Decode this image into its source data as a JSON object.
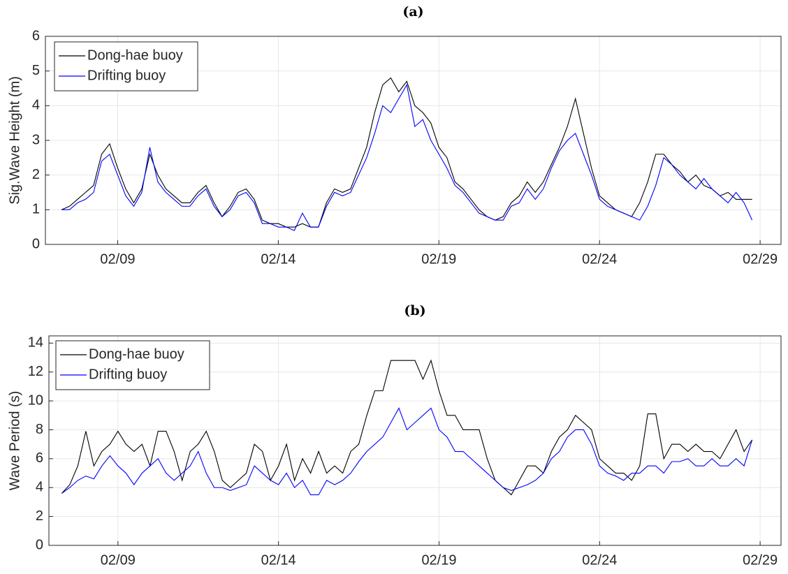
{
  "chart_data": [
    {
      "type": "line",
      "title": "(a)",
      "ylabel": "Sig.Wave Height (m)",
      "x": [
        7.25,
        7.5,
        7.75,
        8,
        8.25,
        8.5,
        8.75,
        9,
        9.25,
        9.5,
        9.75,
        10,
        10.25,
        10.5,
        10.75,
        11,
        11.25,
        11.5,
        11.75,
        12,
        12.25,
        12.5,
        12.75,
        13,
        13.25,
        13.5,
        13.75,
        14,
        14.25,
        14.5,
        14.75,
        15,
        15.25,
        15.5,
        15.75,
        16,
        16.25,
        16.5,
        16.75,
        17,
        17.25,
        17.5,
        17.75,
        18,
        18.25,
        18.5,
        18.75,
        19,
        19.25,
        19.5,
        19.75,
        20,
        20.25,
        20.5,
        20.75,
        21,
        21.25,
        21.5,
        21.75,
        22,
        22.25,
        22.5,
        22.75,
        23,
        23.25,
        23.5,
        23.75,
        24,
        24.25,
        24.5,
        24.75,
        25,
        25.25,
        25.5,
        25.75,
        26,
        26.25,
        26.5,
        26.75,
        27,
        27.25,
        27.5,
        27.75,
        28,
        28.25,
        28.5,
        28.75
      ],
      "series": [
        {
          "name": "Dong-hae buoy",
          "color": "#000000",
          "values": [
            1.0,
            1.1,
            1.3,
            1.5,
            1.7,
            2.6,
            2.9,
            2.2,
            1.6,
            1.2,
            1.6,
            2.6,
            2.0,
            1.6,
            1.4,
            1.2,
            1.2,
            1.5,
            1.7,
            1.2,
            0.8,
            1.1,
            1.5,
            1.6,
            1.3,
            0.7,
            0.6,
            0.6,
            0.5,
            0.5,
            0.6,
            0.5,
            0.5,
            1.2,
            1.6,
            1.5,
            1.6,
            2.2,
            2.8,
            3.8,
            4.6,
            4.8,
            4.4,
            4.7,
            4.0,
            3.8,
            3.5,
            2.8,
            2.5,
            1.8,
            1.6,
            1.3,
            1.0,
            0.8,
            0.7,
            0.8,
            1.2,
            1.4,
            1.8,
            1.5,
            1.8,
            2.3,
            2.8,
            3.4,
            4.2,
            3.2,
            2.2,
            1.4,
            1.2,
            1.0,
            0.9,
            0.8,
            1.2,
            1.8,
            2.6,
            2.6,
            2.3,
            2.1,
            1.8,
            2.0,
            1.7,
            1.6,
            1.4,
            1.5,
            1.3,
            1.3,
            1.3
          ]
        },
        {
          "name": "Drifting buoy",
          "color": "#0000ff",
          "values": [
            1.0,
            1.0,
            1.2,
            1.3,
            1.5,
            2.4,
            2.6,
            2.0,
            1.4,
            1.1,
            1.5,
            2.8,
            1.8,
            1.5,
            1.3,
            1.1,
            1.1,
            1.4,
            1.6,
            1.1,
            0.8,
            1.0,
            1.4,
            1.5,
            1.2,
            0.6,
            0.6,
            0.5,
            0.5,
            0.4,
            0.9,
            0.5,
            0.5,
            1.1,
            1.5,
            1.4,
            1.5,
            2.0,
            2.5,
            3.2,
            4.0,
            3.8,
            4.2,
            4.6,
            3.4,
            3.6,
            3.0,
            2.6,
            2.2,
            1.7,
            1.5,
            1.2,
            0.9,
            0.8,
            0.7,
            0.7,
            1.1,
            1.2,
            1.6,
            1.3,
            1.6,
            2.2,
            2.7,
            3.0,
            3.2,
            2.6,
            2.0,
            1.3,
            1.1,
            1.0,
            0.9,
            0.8,
            0.7,
            1.1,
            1.7,
            2.5,
            2.3,
            2.0,
            1.8,
            1.6,
            1.9,
            1.6,
            1.4,
            1.2,
            1.5,
            1.2,
            0.7
          ]
        }
      ],
      "xlim": [
        6.75,
        29.65
      ],
      "xticks": [
        {
          "value": 9,
          "label": "02/09"
        },
        {
          "value": 14,
          "label": "02/14"
        },
        {
          "value": 19,
          "label": "02/19"
        },
        {
          "value": 24,
          "label": "02/24"
        },
        {
          "value": 29,
          "label": "02/29"
        }
      ],
      "ylim": [
        0,
        6
      ],
      "yticks": [
        0,
        1,
        2,
        3,
        4,
        5,
        6
      ],
      "grid": true,
      "legend": "upper-left"
    },
    {
      "type": "line",
      "title": "(b)",
      "ylabel": "Wave Period (s)",
      "x": [
        7.25,
        7.5,
        7.75,
        8,
        8.25,
        8.5,
        8.75,
        9,
        9.25,
        9.5,
        9.75,
        10,
        10.25,
        10.5,
        10.75,
        11,
        11.25,
        11.5,
        11.75,
        12,
        12.25,
        12.5,
        12.75,
        13,
        13.25,
        13.5,
        13.75,
        14,
        14.25,
        14.5,
        14.75,
        15,
        15.25,
        15.5,
        15.75,
        16,
        16.25,
        16.5,
        16.75,
        17,
        17.25,
        17.5,
        17.75,
        18,
        18.25,
        18.5,
        18.75,
        19,
        19.25,
        19.5,
        19.75,
        20,
        20.25,
        20.5,
        20.75,
        21,
        21.25,
        21.5,
        21.75,
        22,
        22.25,
        22.5,
        22.75,
        23,
        23.25,
        23.5,
        23.75,
        24,
        24.25,
        24.5,
        24.75,
        25,
        25.25,
        25.5,
        25.75,
        26,
        26.25,
        26.5,
        26.75,
        27,
        27.25,
        27.5,
        27.75,
        28,
        28.25,
        28.5,
        28.75
      ],
      "series": [
        {
          "name": "Dong-hae buoy",
          "color": "#000000",
          "values": [
            3.6,
            4.2,
            5.5,
            7.9,
            5.5,
            6.5,
            7.0,
            7.9,
            7.0,
            6.5,
            7.0,
            5.5,
            7.9,
            7.9,
            6.5,
            4.5,
            6.5,
            7.0,
            7.9,
            6.5,
            4.5,
            4.0,
            4.5,
            5.0,
            7.0,
            6.5,
            4.5,
            5.5,
            7.0,
            4.5,
            6.0,
            5.0,
            6.5,
            5.0,
            5.5,
            5.0,
            6.5,
            7.0,
            9.0,
            10.7,
            10.7,
            12.8,
            12.8,
            12.8,
            12.8,
            11.5,
            12.8,
            10.7,
            9.0,
            9.0,
            8.0,
            8.0,
            8.0,
            6.0,
            4.5,
            4.0,
            3.5,
            4.5,
            5.5,
            5.5,
            5.0,
            6.5,
            7.5,
            8.0,
            9.0,
            8.5,
            8.0,
            6.0,
            5.5,
            5.0,
            5.0,
            4.5,
            5.5,
            9.1,
            9.1,
            6.0,
            7.0,
            7.0,
            6.5,
            7.0,
            6.5,
            6.5,
            6.0,
            7.0,
            8.0,
            6.5,
            7.3
          ]
        },
        {
          "name": "Drifting buoy",
          "color": "#0000ff",
          "values": [
            3.6,
            4.0,
            4.5,
            4.8,
            4.6,
            5.5,
            6.2,
            5.5,
            5.0,
            4.2,
            5.0,
            5.5,
            6.0,
            5.0,
            4.5,
            5.0,
            5.5,
            6.5,
            5.0,
            4.0,
            4.0,
            3.8,
            4.0,
            4.2,
            5.5,
            5.0,
            4.5,
            4.2,
            5.0,
            4.0,
            4.5,
            3.5,
            3.5,
            4.5,
            4.2,
            4.5,
            5.0,
            5.8,
            6.5,
            7.0,
            7.5,
            8.5,
            9.5,
            8.0,
            8.5,
            9.0,
            9.5,
            8.0,
            7.5,
            6.5,
            6.5,
            6.0,
            5.5,
            5.0,
            4.5,
            4.0,
            3.8,
            4.0,
            4.2,
            4.5,
            5.0,
            6.0,
            6.5,
            7.5,
            8.0,
            8.0,
            7.0,
            5.5,
            5.0,
            4.8,
            4.5,
            5.0,
            5.0,
            5.5,
            5.5,
            5.0,
            5.8,
            5.8,
            6.0,
            5.5,
            5.5,
            6.0,
            5.5,
            5.5,
            6.0,
            5.5,
            7.3
          ]
        }
      ],
      "xlim": [
        6.85,
        29.65
      ],
      "xticks": [
        {
          "value": 9,
          "label": "02/09"
        },
        {
          "value": 14,
          "label": "02/14"
        },
        {
          "value": 19,
          "label": "02/19"
        },
        {
          "value": 24,
          "label": "02/24"
        },
        {
          "value": 29,
          "label": "02/29"
        }
      ],
      "ylim": [
        0,
        14.5
      ],
      "yticks": [
        0,
        2,
        4,
        6,
        8,
        10,
        12,
        14
      ],
      "grid": true,
      "legend": "upper-left"
    }
  ]
}
